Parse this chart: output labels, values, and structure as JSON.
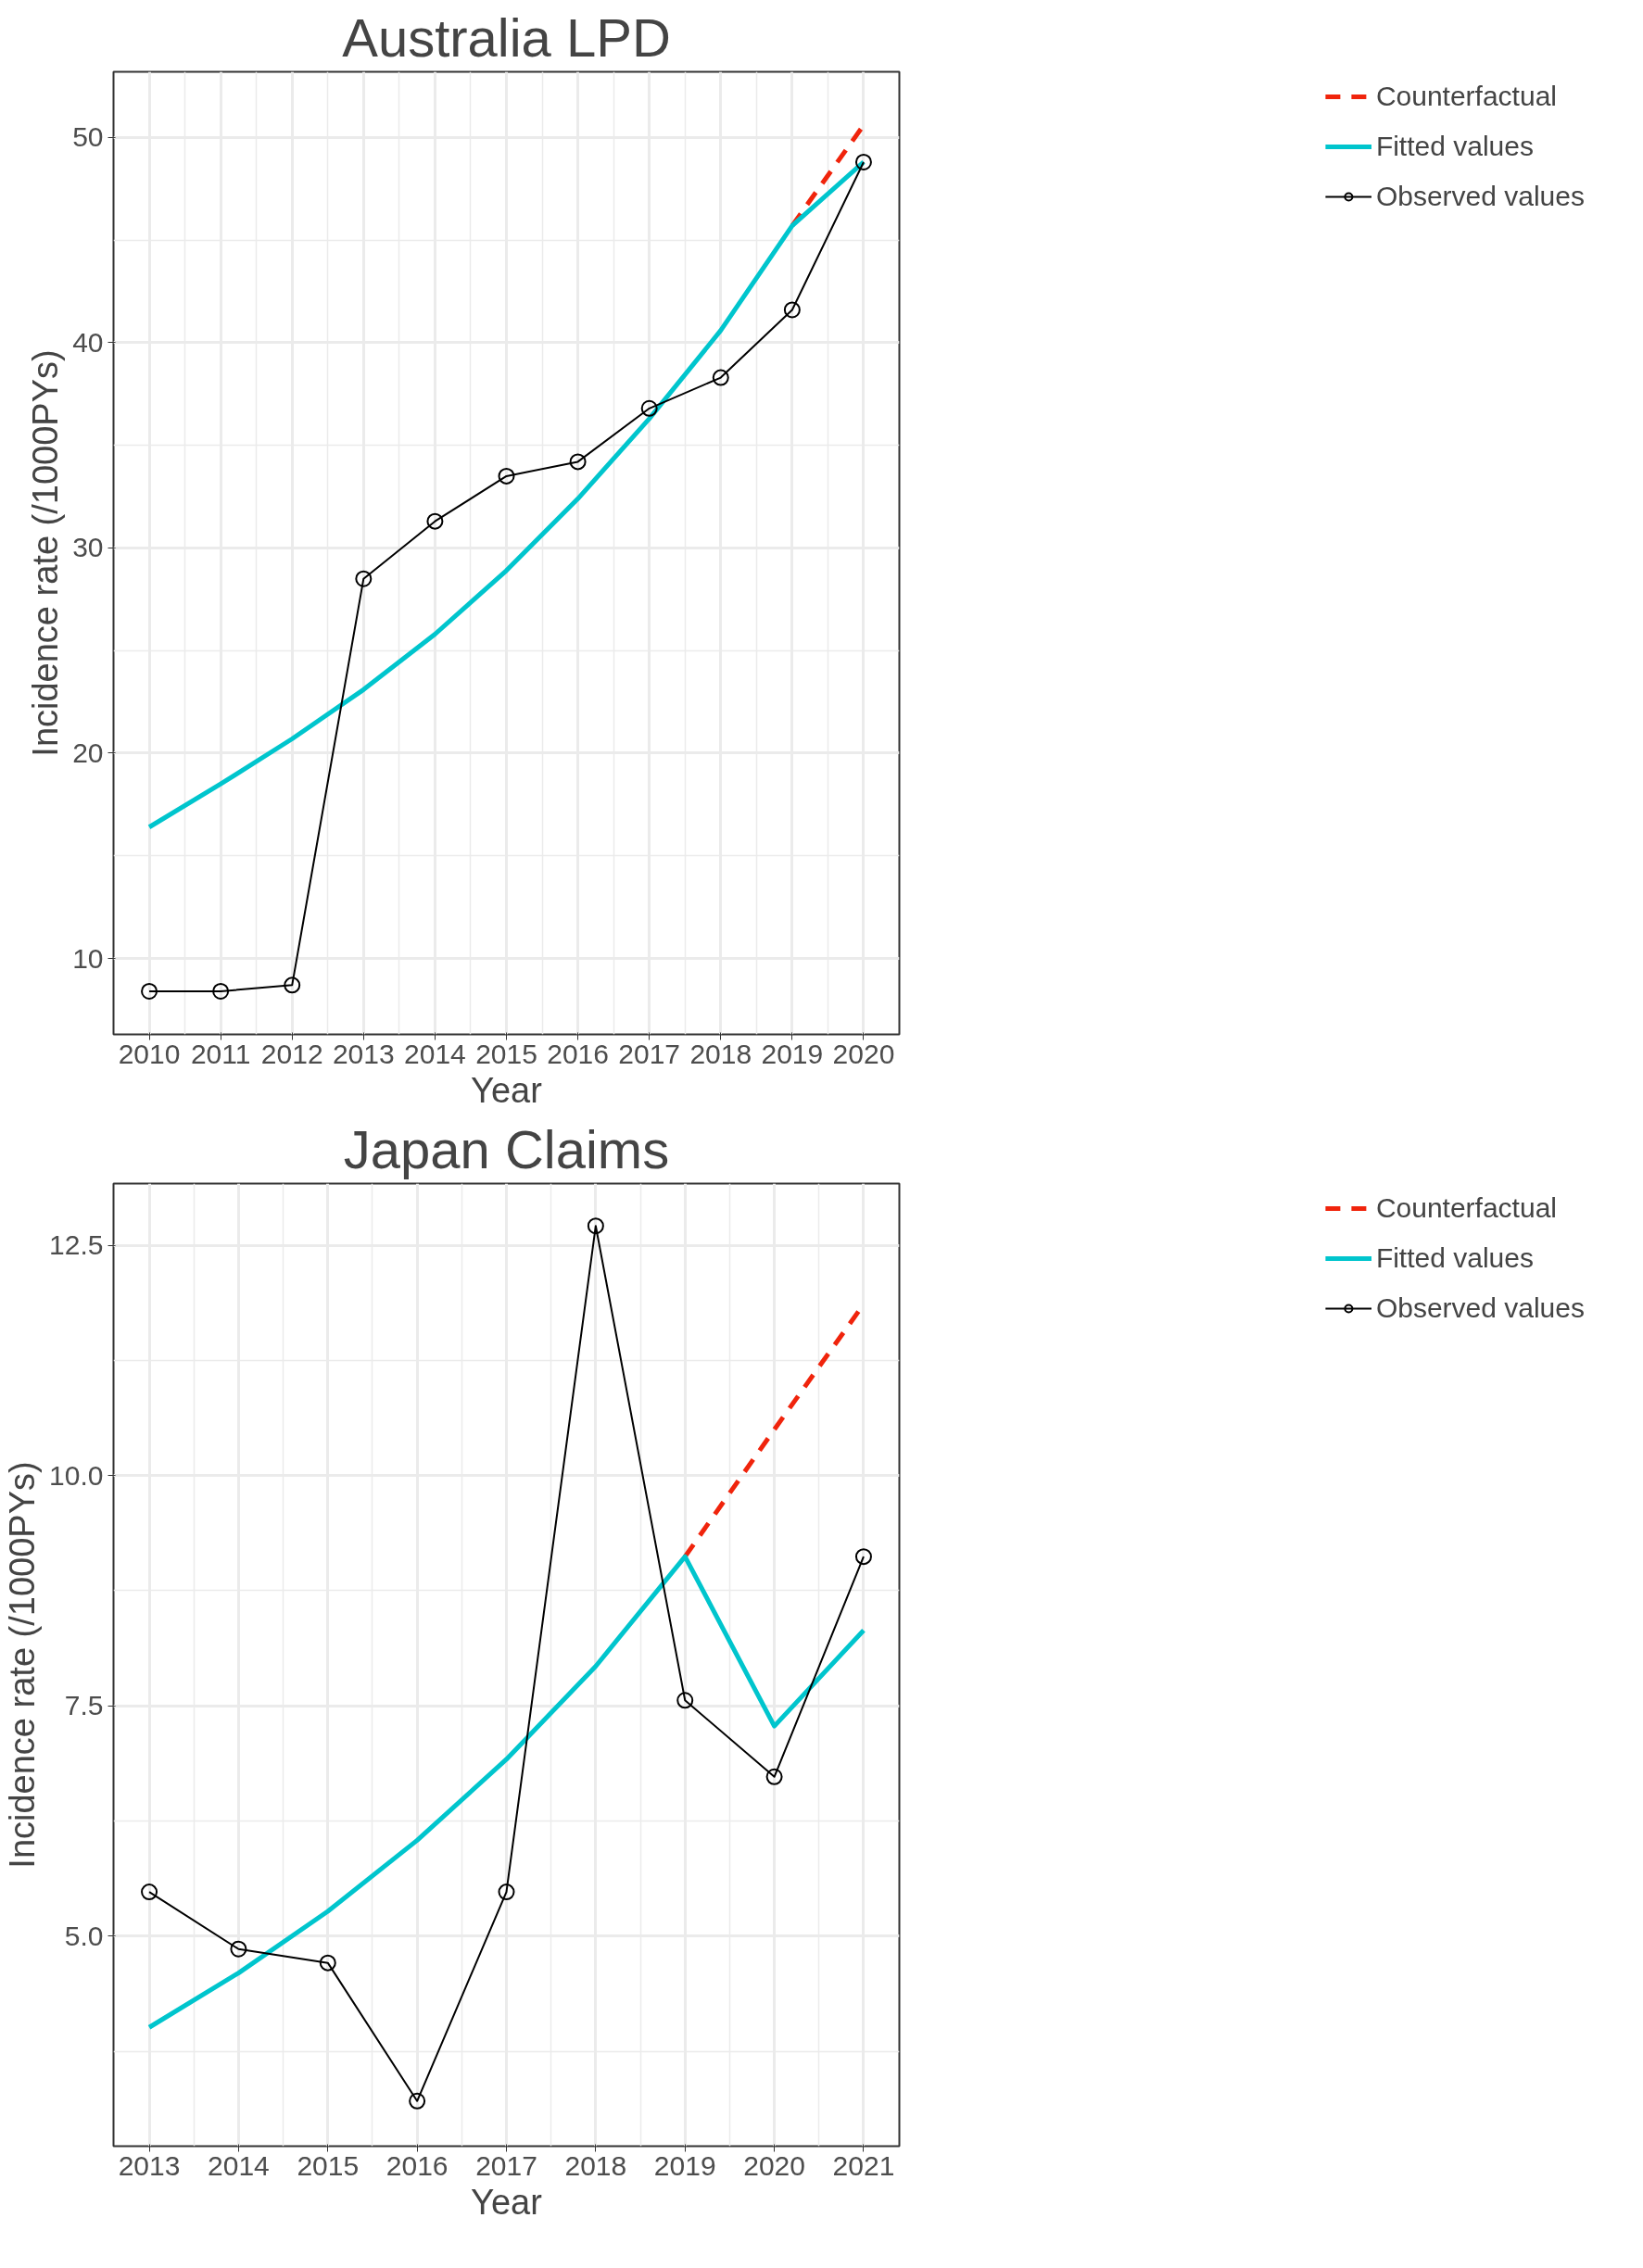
{
  "chart_data": [
    {
      "type": "line",
      "title": "Australia LPD",
      "xlabel": "Year",
      "ylabel": "Incidence rate (/1000PYs)",
      "x": [
        2010,
        2011,
        2012,
        2013,
        2014,
        2015,
        2016,
        2017,
        2018,
        2019,
        2020
      ],
      "xlim": [
        2009.5,
        2020.5
      ],
      "xticks": [
        2010,
        2011,
        2012,
        2013,
        2014,
        2015,
        2016,
        2017,
        2018,
        2019,
        2020
      ],
      "ylim": [
        6.3,
        53.2
      ],
      "yticks": [
        10,
        20,
        30,
        40,
        50
      ],
      "grid": true,
      "legend": "right",
      "series": [
        {
          "name": "Counterfactual",
          "color": "#f0240c",
          "line_style": "dashed",
          "x": [
            2019,
            2020
          ],
          "values": [
            45.7,
            50.6
          ]
        },
        {
          "name": "Fitted values",
          "color": "#00c5cd",
          "values": [
            16.4,
            18.5,
            20.7,
            23.1,
            25.8,
            28.9,
            32.4,
            36.3,
            40.6,
            45.7,
            48.8
          ]
        },
        {
          "name": "Observed values",
          "color": "#000000",
          "marker": "circle",
          "values": [
            8.4,
            8.4,
            8.7,
            28.5,
            31.3,
            33.5,
            34.2,
            36.8,
            38.3,
            41.6,
            48.8
          ]
        }
      ]
    },
    {
      "type": "line",
      "title": "Japan Claims",
      "xlabel": "Year",
      "ylabel": "Incidence rate (/1000PYs)",
      "x": [
        2013,
        2014,
        2015,
        2016,
        2017,
        2018,
        2019,
        2020,
        2021
      ],
      "xlim": [
        2012.6,
        2021.4
      ],
      "xticks": [
        2013,
        2014,
        2015,
        2016,
        2017,
        2018,
        2019,
        2020,
        2021
      ],
      "ylim": [
        2.72,
        13.17
      ],
      "yticks": [
        {
          "value": 5,
          "label": "5.0"
        },
        {
          "value": 7.5,
          "label": "7.5"
        },
        {
          "value": 10,
          "label": "10.0"
        },
        {
          "value": 12.5,
          "label": "12.5"
        }
      ],
      "grid": true,
      "legend": "right",
      "series": [
        {
          "name": "Counterfactual",
          "color": "#f0240c",
          "line_style": "dashed",
          "x": [
            2019,
            2020,
            2021
          ],
          "values": [
            9.12,
            10.5,
            11.86
          ]
        },
        {
          "name": "Fitted values",
          "color": "#00c5cd",
          "values": [
            4.01,
            4.6,
            5.27,
            6.04,
            6.92,
            7.93,
            9.12,
            7.28,
            8.32
          ]
        },
        {
          "name": "Observed values",
          "color": "#000000",
          "marker": "circle",
          "values": [
            5.48,
            4.86,
            4.71,
            3.21,
            5.48,
            12.71,
            7.56,
            6.73,
            9.12
          ]
        }
      ]
    }
  ]
}
